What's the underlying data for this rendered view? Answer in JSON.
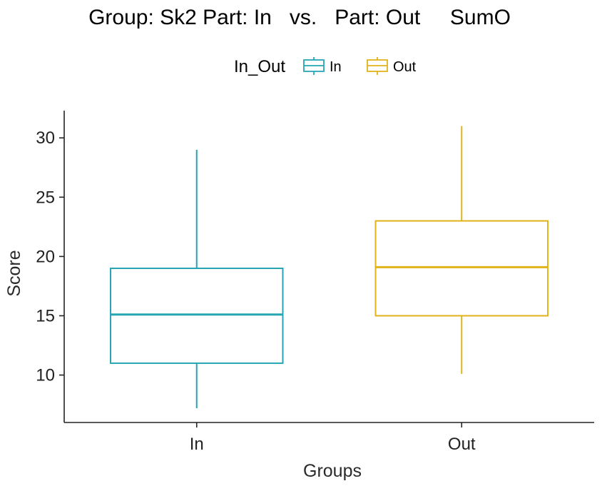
{
  "chart_data": {
    "type": "box",
    "title": "Group: Sk2 Part: In   vs.   Part: Out     SumO",
    "xlabel": "Groups",
    "ylabel": "Score",
    "ylim": [
      6,
      32.3
    ],
    "yticks": [
      10,
      15,
      20,
      25,
      30
    ],
    "grid": false,
    "legend": {
      "title": "In_Out",
      "position": "top",
      "entries": [
        "In",
        "Out"
      ]
    },
    "categories": [
      "In",
      "Out"
    ],
    "series": [
      {
        "name": "In",
        "color": "#26a6b4",
        "whisker_low": 7.2,
        "q1": 11,
        "median": 15.1,
        "q3": 19,
        "whisker_high": 29
      },
      {
        "name": "Out",
        "color": "#e0b31b",
        "whisker_low": 10.1,
        "q1": 15,
        "median": 19.1,
        "q3": 23,
        "whisker_high": 31
      }
    ]
  }
}
